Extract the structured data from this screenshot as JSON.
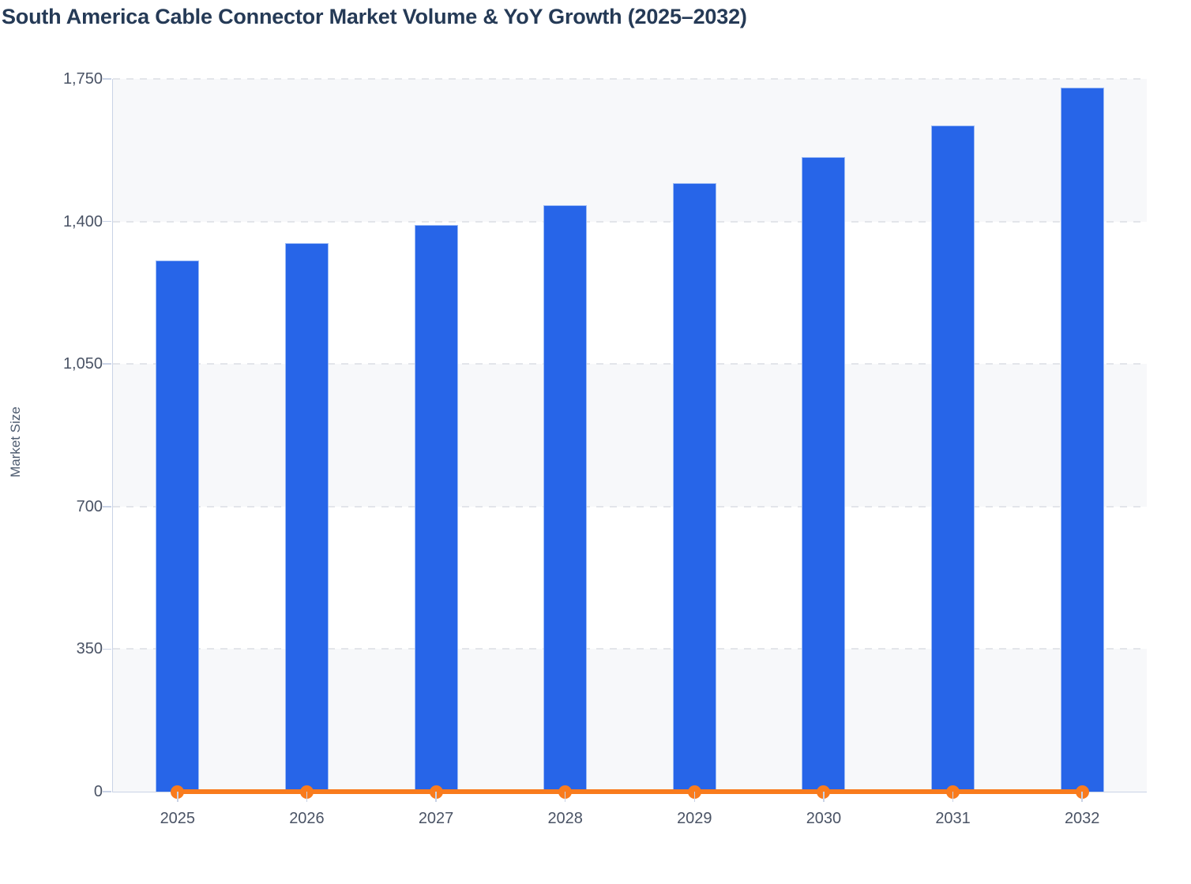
{
  "title": "South America Cable Connector Market Volume & YoY Growth (2025–2032)",
  "chart_data": {
    "type": "bar",
    "title": "South America Cable Connector Market Volume & YoY Growth (2025–2032)",
    "xlabel": "",
    "ylabel": "Market Size",
    "categories": [
      "2025",
      "2026",
      "2027",
      "2028",
      "2029",
      "2030",
      "2031",
      "2032"
    ],
    "series": [
      {
        "name": "Market Size",
        "type": "bar",
        "values": [
          1305,
          1347,
          1391,
          1440,
          1494,
          1558,
          1636,
          1729
        ]
      },
      {
        "name": "YoY Growth",
        "type": "line",
        "values": [
          0,
          0,
          0,
          0,
          0,
          0,
          0,
          0
        ],
        "rendered_position": "flat line with round markers sitting on the zero baseline"
      }
    ],
    "ylim": [
      0,
      1750
    ],
    "y_ticks": [
      0,
      350,
      700,
      1050,
      1400,
      1750
    ],
    "y_tick_labels": [
      "0",
      "350",
      "700",
      "1,050",
      "1,400",
      "1,750"
    ],
    "legend_position": "none",
    "grid": "horizontal dashed gridlines at each y tick",
    "plot_bands": "alternating shaded horizontal bands, shaded from top: 1400-1750, 700-1050, 0-350"
  },
  "colors": {
    "bar_fill": "#2765e8",
    "bar_border": "#9ebcf5",
    "line": "#f97b1d",
    "band_shade": "#f7f8fa",
    "gridline": "#e3e5ea",
    "axis_line": "#c9d3e6",
    "title_text": "#253a56",
    "axis_label_text": "#4a5365"
  }
}
